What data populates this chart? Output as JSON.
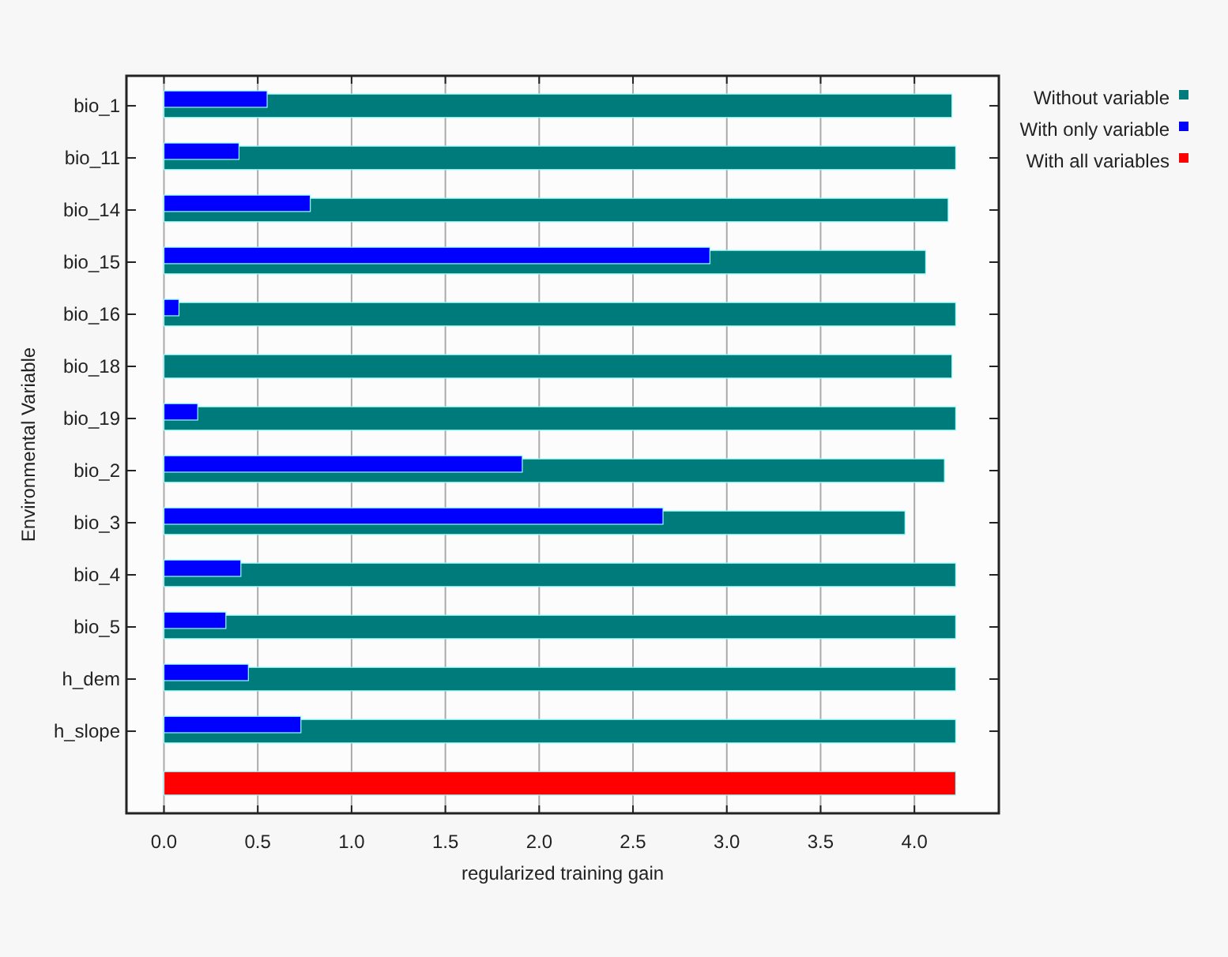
{
  "chart_data": {
    "type": "bar",
    "orientation": "horizontal",
    "xlabel": "regularized training gain",
    "ylabel": "Environmental Variable",
    "categories": [
      "bio_1",
      "bio_11",
      "bio_14",
      "bio_15",
      "bio_16",
      "bio_18",
      "bio_19",
      "bio_2",
      "bio_3",
      "bio_4",
      "bio_5",
      "h_dem",
      "h_slope",
      null
    ],
    "series": [
      {
        "name": "Without variable",
        "color": "#007b7b",
        "values": [
          4.2,
          4.22,
          4.18,
          4.06,
          4.22,
          4.2,
          4.22,
          4.16,
          3.95,
          4.22,
          4.22,
          4.22,
          4.22,
          null
        ]
      },
      {
        "name": "With only variable",
        "color": "#0000ff",
        "values": [
          0.55,
          0.4,
          0.78,
          2.91,
          0.08,
          0,
          0.18,
          1.91,
          2.66,
          0.41,
          0.33,
          0.45,
          0.73,
          null
        ]
      },
      {
        "name": "With all variables",
        "color": "#ff0000",
        "values": [
          null,
          null,
          null,
          null,
          null,
          null,
          null,
          null,
          null,
          null,
          null,
          null,
          null,
          4.22
        ]
      }
    ],
    "xlim": [
      -0.2,
      4.45
    ],
    "xticks": [
      {
        "value": 0,
        "label": "0.0"
      },
      0.5,
      {
        "value": 1,
        "label": "1.0"
      },
      1.5,
      {
        "value": 2,
        "label": "2.0"
      },
      2.5,
      {
        "value": 3,
        "label": "3.0"
      },
      3.5,
      {
        "value": 4,
        "label": "4.0"
      }
    ],
    "grid": "x",
    "legend": "top right"
  }
}
